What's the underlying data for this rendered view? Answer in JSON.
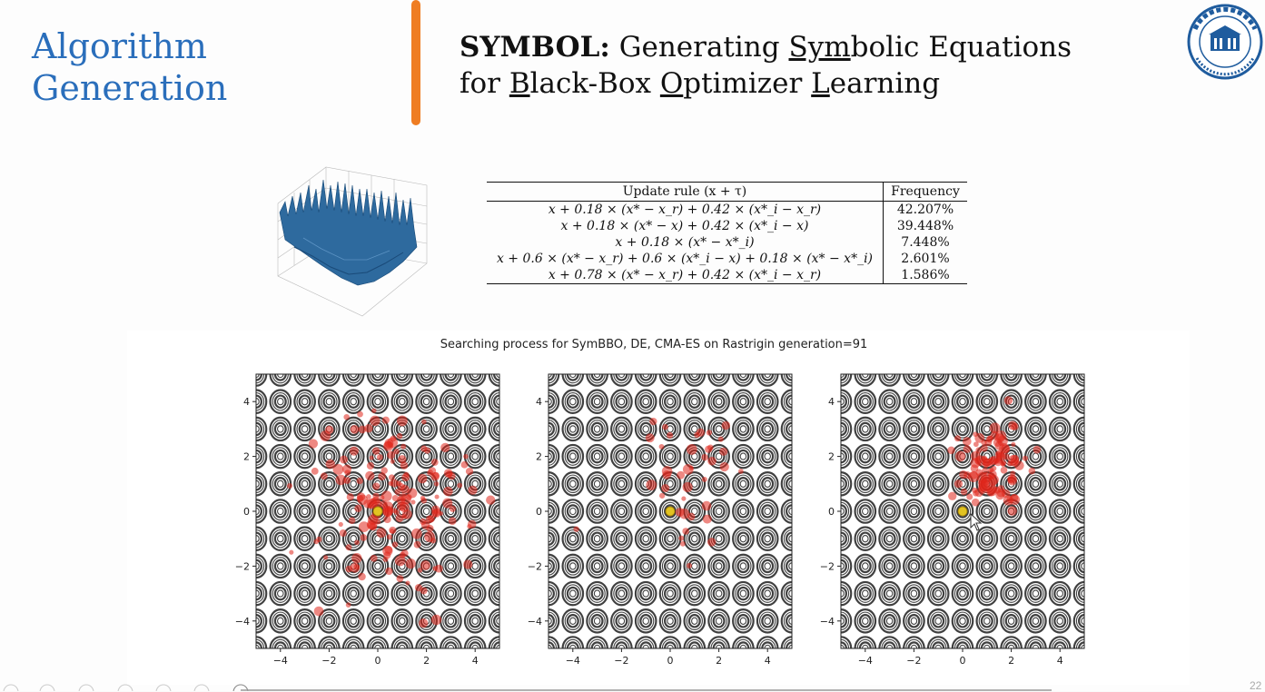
{
  "slide": {
    "section_title_line1": "Algorithm",
    "section_title_line2": "Generation",
    "paper_title": {
      "bold": "SYMBOL:",
      "line1_rest_a": " Generating ",
      "line1_u1": "Sym",
      "line1_rest_b": "bolic Equations",
      "line2_a": "for ",
      "line2_u1": "B",
      "line2_b": "lack-Box ",
      "line2_u2": "O",
      "line2_c": "ptimizer ",
      "line2_u3": "L",
      "line2_d": "earning"
    },
    "logo_icon": "university-seal-icon",
    "page_number": "22",
    "accent_color": "#2a6ebb",
    "divider_color": "#ef7d22"
  },
  "table": {
    "header_rule": "Update rule (x + τ)",
    "header_freq": "Frequency",
    "rows": [
      {
        "rule": "x + 0.18 × (x* − x_r) + 0.42 × (x*_i − x_r)",
        "freq": "42.207%"
      },
      {
        "rule": "x + 0.18 × (x* − x) + 0.42 × (x*_i − x)",
        "freq": "39.448%"
      },
      {
        "rule": "x + 0.18 × (x* − x*_i)",
        "freq": "7.448%"
      },
      {
        "rule": "x + 0.6 × (x* − x_r) + 0.6 × (x*_i − x) + 0.18 × (x* − x*_i)",
        "freq": "2.601%"
      },
      {
        "rule": "x + 0.78 × (x* − x_r) + 0.42 × (x*_i − x_r)",
        "freq": "1.586%"
      }
    ]
  },
  "figure": {
    "title": "Searching process for SymBBO, DE, CMA-ES on Rastrigin generation=91",
    "tick_labels": [
      "−4",
      "−2",
      "0",
      "2",
      "4"
    ]
  },
  "chart_data": [
    {
      "type": "scatter",
      "title": "",
      "xlim": [
        -5,
        5
      ],
      "ylim": [
        -5,
        5
      ],
      "xticks": [
        -4,
        -2,
        0,
        2,
        4
      ],
      "yticks": [
        -4,
        -2,
        0,
        2,
        4
      ],
      "background": "Rastrigin contour",
      "optimum": [
        0,
        0
      ],
      "spread": 2.6,
      "center": [
        0.6,
        0.4
      ],
      "count": 180
    },
    {
      "type": "scatter",
      "title": "",
      "xlim": [
        -5,
        5
      ],
      "ylim": [
        -5,
        5
      ],
      "xticks": [
        -4,
        -2,
        0,
        2,
        4
      ],
      "yticks": [
        -4,
        -2,
        0,
        2,
        4
      ],
      "background": "Rastrigin contour",
      "optimum": [
        0,
        0
      ],
      "spread": 2.2,
      "center": [
        0.6,
        1.0
      ],
      "count": 40
    },
    {
      "type": "scatter",
      "title": "",
      "xlim": [
        -5,
        5
      ],
      "ylim": [
        -5,
        5
      ],
      "xticks": [
        -4,
        -2,
        0,
        2,
        4
      ],
      "yticks": [
        -4,
        -2,
        0,
        2,
        4
      ],
      "background": "Rastrigin contour",
      "optimum": [
        0,
        0
      ],
      "spread": 1.1,
      "center": [
        1.2,
        1.6
      ],
      "count": 110
    }
  ],
  "nav_icons": [
    "nav-prev-icon",
    "nav-next-icon",
    "nav-section-icon",
    "nav-frame-icon",
    "nav-subsection-icon",
    "nav-search-icon"
  ]
}
